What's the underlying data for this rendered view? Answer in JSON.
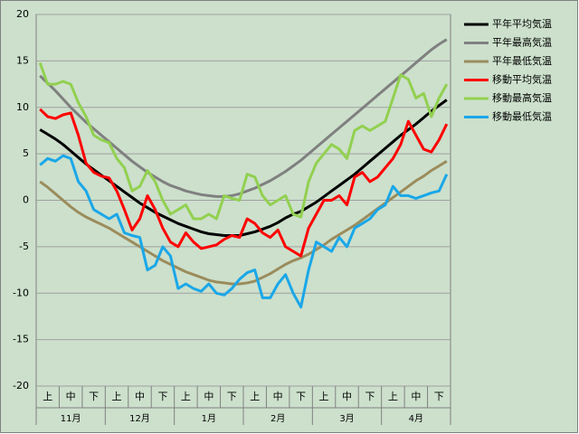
{
  "chart_data": {
    "type": "line",
    "categories": [
      null,
      "上",
      null,
      null,
      "中",
      null,
      null,
      "下",
      null,
      null,
      "上",
      null,
      null,
      "中",
      null,
      null,
      "下",
      null,
      null,
      "上",
      null,
      null,
      "中",
      null,
      null,
      "下",
      null,
      null,
      "上",
      null,
      null,
      "中",
      null,
      null,
      "下",
      null,
      null,
      "上",
      null,
      null,
      "中",
      null,
      null,
      "下",
      null,
      null,
      "上",
      null,
      null,
      "中",
      null,
      null,
      "下",
      null
    ],
    "groups": [
      "11月",
      "12月",
      "1月",
      "2月",
      "3月",
      "4月"
    ],
    "ylim": [
      -20,
      20
    ],
    "yticks": [
      -20,
      -15,
      -10,
      -5,
      0,
      5,
      10,
      15,
      20
    ],
    "grid": true,
    "legend": "right",
    "series": [
      {
        "name": "平年平均気温",
        "color": "#000000",
        "values": [
          7.6,
          7.1,
          6.6,
          6.0,
          5.3,
          4.6,
          3.9,
          3.3,
          2.7,
          2.1,
          1.5,
          0.9,
          0.3,
          -0.3,
          -0.8,
          -1.3,
          -1.7,
          -2.1,
          -2.5,
          -2.8,
          -3.1,
          -3.4,
          -3.6,
          -3.7,
          -3.8,
          -3.8,
          -3.8,
          -3.6,
          -3.4,
          -3.1,
          -2.8,
          -2.4,
          -1.9,
          -1.5,
          -1.2,
          -0.7,
          -0.2,
          0.4,
          1.0,
          1.6,
          2.2,
          2.8,
          3.5,
          4.2,
          4.9,
          5.6,
          6.3,
          7.0,
          7.6,
          8.2,
          8.9,
          9.6,
          10.2,
          10.8
        ]
      },
      {
        "name": "平年最高気温",
        "color": "#808080",
        "values": [
          13.4,
          12.6,
          11.8,
          10.9,
          10.0,
          9.2,
          8.4,
          7.7,
          7.0,
          6.3,
          5.6,
          4.9,
          4.2,
          3.6,
          3.0,
          2.5,
          2.0,
          1.6,
          1.3,
          1.0,
          0.8,
          0.6,
          0.5,
          0.4,
          0.4,
          0.5,
          0.7,
          1.0,
          1.3,
          1.7,
          2.1,
          2.6,
          3.1,
          3.7,
          4.3,
          5.0,
          5.7,
          6.4,
          7.1,
          7.8,
          8.5,
          9.2,
          9.9,
          10.6,
          11.3,
          12.0,
          12.7,
          13.4,
          14.1,
          14.8,
          15.5,
          16.2,
          16.8,
          17.3
        ]
      },
      {
        "name": "平年最低気温",
        "color": "#9b8c5c",
        "values": [
          2.0,
          1.4,
          0.7,
          0.0,
          -0.7,
          -1.3,
          -1.8,
          -2.2,
          -2.6,
          -3.0,
          -3.5,
          -4.0,
          -4.5,
          -5.0,
          -5.5,
          -6.0,
          -6.5,
          -6.9,
          -7.3,
          -7.7,
          -8.0,
          -8.3,
          -8.6,
          -8.8,
          -8.9,
          -9.0,
          -9.0,
          -8.9,
          -8.7,
          -8.3,
          -7.9,
          -7.4,
          -6.9,
          -6.5,
          -6.2,
          -5.8,
          -5.3,
          -4.8,
          -4.2,
          -3.7,
          -3.2,
          -2.7,
          -2.1,
          -1.5,
          -0.9,
          -0.3,
          0.3,
          0.9,
          1.5,
          2.1,
          2.6,
          3.2,
          3.7,
          4.2
        ]
      },
      {
        "name": "移動平均気温",
        "color": "#ff0000",
        "values": [
          9.8,
          9.0,
          8.8,
          9.2,
          9.4,
          7.0,
          4.0,
          3.0,
          2.6,
          2.4,
          1.0,
          -1.0,
          -3.2,
          -2.0,
          0.5,
          -1.0,
          -3.0,
          -4.5,
          -5.0,
          -3.5,
          -4.5,
          -5.2,
          -5.0,
          -4.8,
          -4.2,
          -3.8,
          -4.0,
          -2.0,
          -2.5,
          -3.5,
          -4.0,
          -3.2,
          -5.0,
          -5.5,
          -6.0,
          -3.0,
          -1.5,
          0.0,
          0.0,
          0.5,
          -0.5,
          2.5,
          3.0,
          2.0,
          2.5,
          3.5,
          4.5,
          6.0,
          8.5,
          7.0,
          5.5,
          5.2,
          6.5,
          8.2
        ]
      },
      {
        "name": "移動最高気温",
        "color": "#92d050",
        "values": [
          14.8,
          12.5,
          12.5,
          12.8,
          12.5,
          10.5,
          9.0,
          7.0,
          6.5,
          6.2,
          4.5,
          3.5,
          1.0,
          1.5,
          3.2,
          2.0,
          0.0,
          -1.5,
          -1.0,
          -0.5,
          -2.0,
          -2.0,
          -1.5,
          -2.0,
          0.5,
          0.2,
          0.0,
          2.8,
          2.5,
          0.5,
          -0.5,
          0.0,
          0.5,
          -1.5,
          -1.8,
          2.0,
          4.0,
          5.0,
          6.0,
          5.5,
          4.5,
          7.5,
          8.0,
          7.5,
          8.0,
          8.5,
          11.0,
          13.5,
          13.0,
          11.0,
          11.5,
          9.0,
          11.0,
          12.5
        ]
      },
      {
        "name": "移動最低気温",
        "color": "#1aa7e8",
        "values": [
          3.8,
          4.5,
          4.2,
          4.8,
          4.5,
          2.0,
          1.0,
          -1.0,
          -1.5,
          -2.0,
          -1.5,
          -3.5,
          -3.8,
          -4.0,
          -7.5,
          -7.0,
          -5.0,
          -6.0,
          -9.5,
          -9.0,
          -9.5,
          -9.8,
          -9.0,
          -10.0,
          -10.2,
          -9.5,
          -8.5,
          -7.8,
          -7.5,
          -10.5,
          -10.5,
          -9.0,
          -8.0,
          -10.0,
          -11.5,
          -7.5,
          -4.5,
          -5.0,
          -5.5,
          -4.0,
          -5.0,
          -3.0,
          -2.5,
          -2.0,
          -1.0,
          -0.5,
          1.5,
          0.5,
          0.5,
          0.2,
          0.5,
          0.8,
          1.0,
          2.8
        ]
      }
    ]
  }
}
